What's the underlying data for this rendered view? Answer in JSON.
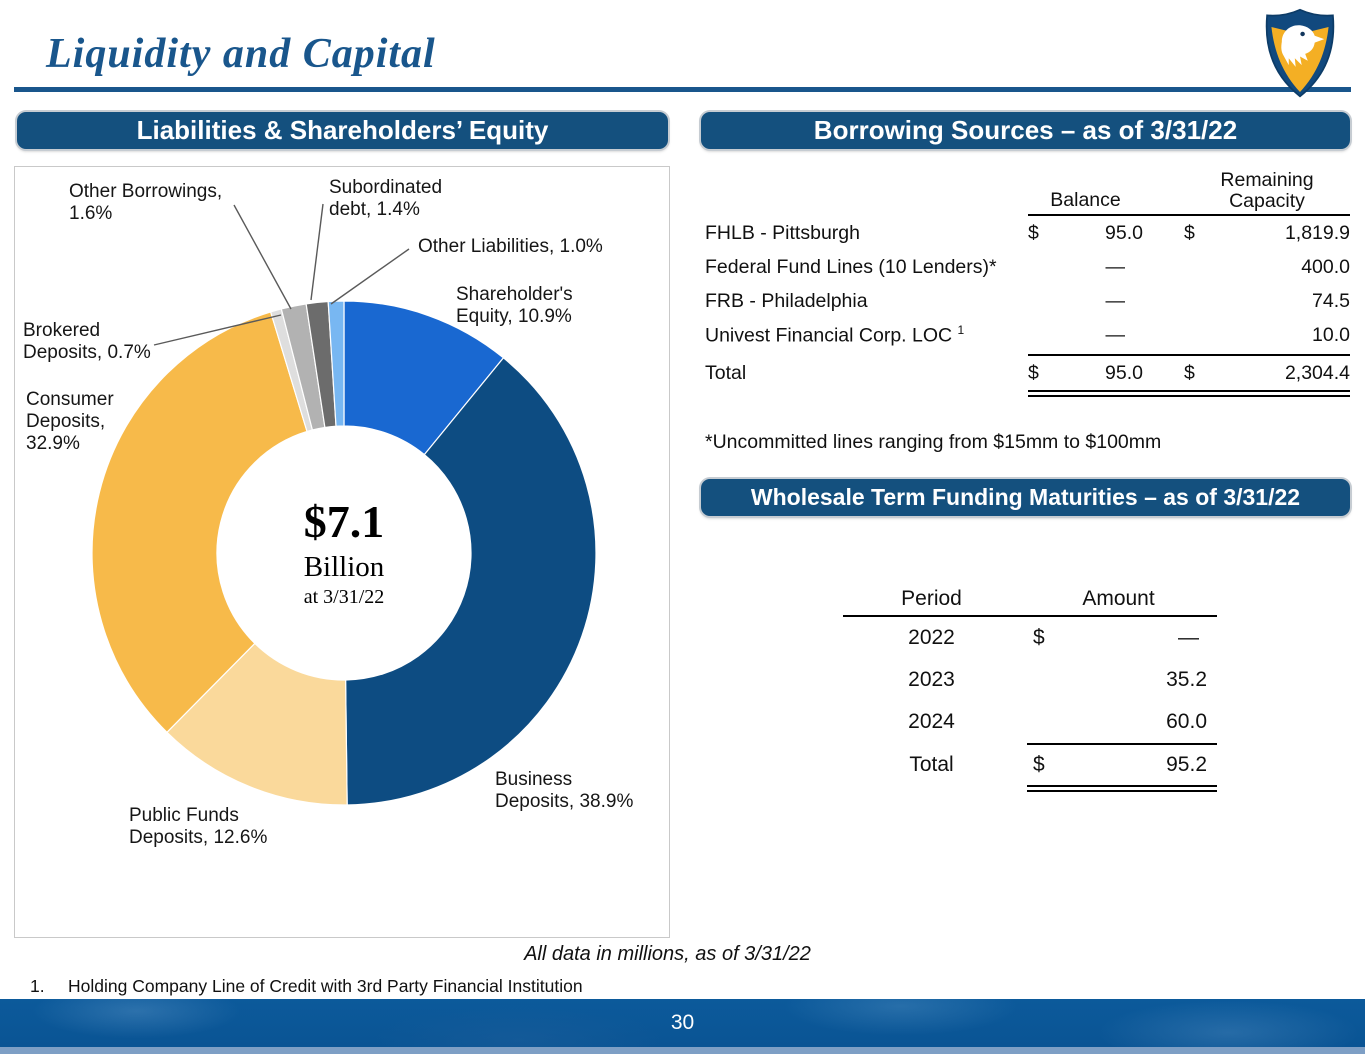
{
  "page": {
    "title": "Liquidity and Capital",
    "data_note": "All data in millions, as of 3/31/22",
    "footnote_marker": "1.",
    "footnote_text": "Holding Company Line of Credit with 3rd Party Financial Institution",
    "page_number": "30"
  },
  "icons": {
    "logo": "eagle-shield-logo"
  },
  "colors": {
    "header_bar": "#14507E",
    "title_blue": "#19568C",
    "footer_bar": "#0A5494",
    "footer_strip": "#7E9FC5"
  },
  "panels": {
    "liabilities_header": "Liabilities & Shareholders’ Equity",
    "borrowing_header": "Borrowing Sources – as of 3/31/22",
    "wholesale_header": "Wholesale Term Funding Maturities – as of 3/31/22"
  },
  "chart_data": {
    "type": "pie",
    "title": "Liabilities & Shareholders’ Equity",
    "start_angle_deg": -90,
    "direction": "clockwise",
    "center_label": {
      "value": "$7.1",
      "unit": "Billion",
      "as_of": "at 3/31/22"
    },
    "slices": [
      {
        "name": "Shareholder's Equity",
        "value": 10.9,
        "color": "#1968D1",
        "label": "Shareholder's Equity, 10.9%"
      },
      {
        "name": "Business Deposits",
        "value": 38.9,
        "color": "#0D4C82",
        "label": "Business Deposits, 38.9%"
      },
      {
        "name": "Public Funds Deposits",
        "value": 12.6,
        "color": "#FAD99B",
        "label": "Public Funds Deposits, 12.6%"
      },
      {
        "name": "Consumer Deposits",
        "value": 32.9,
        "color": "#F7BA4A",
        "label": "Consumer Deposits, 32.9%"
      },
      {
        "name": "Brokered Deposits",
        "value": 0.7,
        "color": "#DEDEDE",
        "label": "Brokered Deposits, 0.7%"
      },
      {
        "name": "Other Borrowings",
        "value": 1.6,
        "color": "#B2B2B2",
        "label": "Other Borrowings, 1.6%"
      },
      {
        "name": "Subordinated debt",
        "value": 1.4,
        "color": "#6C6C6C",
        "label": "Subordinated debt, 1.4%"
      },
      {
        "name": "Other Liabilities",
        "value": 1.0,
        "color": "#78B7F2",
        "label": "Other Liabilities, 1.0%"
      }
    ]
  },
  "borrowing": {
    "col_balance": "Balance",
    "col_capacity_line1": "Remaining",
    "col_capacity_line2": "Capacity",
    "rows": [
      {
        "label": "FHLB - Pittsburgh",
        "sup": "",
        "bal_cur": "$",
        "bal": "95.0",
        "cap_cur": "$",
        "cap": "1,819.9"
      },
      {
        "label": "Federal Fund Lines (10 Lenders)*",
        "sup": "",
        "bal_cur": "",
        "bal": "—",
        "cap_cur": "",
        "cap": "400.0"
      },
      {
        "label": "FRB - Philadelphia",
        "sup": "",
        "bal_cur": "",
        "bal": "—",
        "cap_cur": "",
        "cap": "74.5"
      },
      {
        "label": "Univest Financial Corp. LOC",
        "sup": "1",
        "bal_cur": "",
        "bal": "—",
        "cap_cur": "",
        "cap": "10.0"
      }
    ],
    "total": {
      "label": "Total",
      "bal_cur": "$",
      "bal": "95.0",
      "cap_cur": "$",
      "cap": "2,304.4"
    },
    "footnote": "*Uncommitted lines ranging from $15mm to $100mm"
  },
  "wholesale": {
    "col_period": "Period",
    "col_amount": "Amount",
    "rows": [
      {
        "period": "2022",
        "cur": "$",
        "amount": "—"
      },
      {
        "period": "2023",
        "cur": "",
        "amount": "35.2"
      },
      {
        "period": "2024",
        "cur": "",
        "amount": "60.0"
      }
    ],
    "total": {
      "period": "Total",
      "cur": "$",
      "amount": "95.2"
    }
  }
}
